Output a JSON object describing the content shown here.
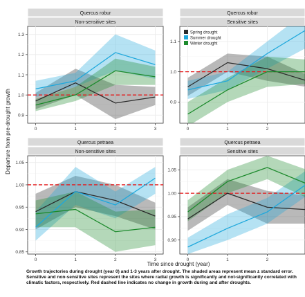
{
  "chart_data": {
    "type": "line",
    "ylabel": "Departure from pre-drought growth",
    "xlabel": "Time since drought (year)",
    "legend_placement": "top-left of upper-right panel",
    "grid": true,
    "legend": [
      {
        "name": "Spring drought",
        "color": "#2b2b2b"
      },
      {
        "name": "Summer drought",
        "color": "#1fa8dc"
      },
      {
        "name": "Winter drought",
        "color": "#1c8a2c"
      }
    ],
    "reference_line": {
      "y": 1.0,
      "style": "dashed",
      "color": "#e41a1c"
    },
    "panels": [
      {
        "species": "Quercus robur",
        "group": "Non-sensitive sites",
        "x": [
          0,
          1,
          2,
          3
        ],
        "xticks": [
          0,
          1,
          2,
          3
        ],
        "ylim": [
          0.86,
          1.34
        ],
        "yticks": [
          0.9,
          1.0,
          1.1,
          1.2,
          1.3
        ],
        "series": [
          {
            "name": "Spring drought",
            "values": [
              0.97,
              1.06,
              0.96,
              0.99
            ],
            "lower": [
              0.93,
              1.0,
              0.88,
              0.95
            ],
            "upper": [
              1.01,
              1.13,
              1.05,
              1.04
            ]
          },
          {
            "name": "Summer drought",
            "values": [
              1.03,
              1.07,
              1.21,
              1.15
            ],
            "lower": [
              0.99,
              1.04,
              1.12,
              1.08
            ],
            "upper": [
              1.07,
              1.11,
              1.3,
              1.22
            ]
          },
          {
            "name": "Winter drought",
            "values": [
              0.95,
              1.0,
              1.12,
              1.09
            ],
            "lower": [
              0.92,
              0.97,
              1.05,
              1.05
            ],
            "upper": [
              0.98,
              1.04,
              1.18,
              1.14
            ]
          }
        ]
      },
      {
        "species": "Quercus robur",
        "group": "Sensitive sites",
        "x": [
          0,
          1,
          2,
          3
        ],
        "xticks": [
          0,
          1,
          2
        ],
        "ylim": [
          0.83,
          1.15
        ],
        "yticks": [
          0.9,
          1.0,
          1.1
        ],
        "series": [
          {
            "name": "Spring drought",
            "values": [
              0.95,
              1.03,
              1.01,
              0.97
            ],
            "lower": [
              0.92,
              1.0,
              0.97,
              0.95
            ],
            "upper": [
              0.98,
              1.06,
              1.05,
              0.99
            ]
          },
          {
            "name": "Summer drought",
            "values": [
              0.94,
              0.97,
              1.06,
              1.14
            ],
            "lower": [
              0.91,
              0.94,
              1.01,
              1.08
            ],
            "upper": [
              0.97,
              1.0,
              1.1,
              1.2
            ]
          },
          {
            "name": "Winter drought",
            "values": [
              0.86,
              0.94,
              1.0,
              1.0
            ],
            "lower": [
              0.82,
              0.9,
              0.95,
              0.96
            ],
            "upper": [
              0.9,
              0.98,
              1.05,
              1.04
            ]
          }
        ]
      },
      {
        "species": "Quercus petraea",
        "group": "Non-sensitive sites",
        "x": [
          0,
          1,
          2,
          3
        ],
        "xticks": [
          0,
          1,
          2,
          3
        ],
        "ylim": [
          0.845,
          1.065
        ],
        "yticks": [
          0.85,
          0.9,
          0.95,
          1.0,
          1.05
        ],
        "series": [
          {
            "name": "Spring drought",
            "values": [
              0.94,
              0.985,
              0.965,
              0.93
            ],
            "lower": [
              0.9,
              0.95,
              0.93,
              0.9
            ],
            "upper": [
              0.98,
              1.02,
              1.0,
              0.96
            ]
          },
          {
            "name": "Summer drought",
            "values": [
              0.905,
              0.985,
              0.955,
              1.015
            ],
            "lower": [
              0.875,
              0.955,
              0.925,
              0.98
            ],
            "upper": [
              0.94,
              1.04,
              0.985,
              1.04
            ]
          },
          {
            "name": "Winter drought",
            "values": [
              0.935,
              0.945,
              0.895,
              0.905
            ],
            "lower": [
              0.905,
              0.905,
              0.85,
              0.865
            ],
            "upper": [
              0.965,
              0.985,
              0.94,
              0.945
            ]
          }
        ]
      },
      {
        "species": "Quercus petraea",
        "group": "Sensitive sites",
        "x": [
          0,
          1,
          2,
          3
        ],
        "xticks": [
          0,
          1,
          2
        ],
        "ylim": [
          0.87,
          1.08
        ],
        "yticks": [
          0.9,
          0.95,
          1.0,
          1.05
        ],
        "series": [
          {
            "name": "Spring drought",
            "values": [
              0.945,
              1.0,
              0.97,
              0.965
            ],
            "lower": [
              0.92,
              0.975,
              0.935,
              0.935
            ],
            "upper": [
              0.97,
              1.03,
              1.005,
              0.995
            ]
          },
          {
            "name": "Summer drought",
            "values": [
              0.885,
              0.925,
              0.96,
              1.02
            ],
            "lower": [
              0.87,
              0.9,
              0.935,
              0.995
            ],
            "upper": [
              0.905,
              0.955,
              0.99,
              1.05
            ]
          },
          {
            "name": "Winter drought",
            "values": [
              0.96,
              1.025,
              1.055,
              1.02
            ],
            "lower": [
              0.94,
              1.0,
              1.03,
              0.99
            ],
            "upper": [
              0.985,
              1.05,
              1.08,
              1.05
            ]
          }
        ]
      }
    ]
  },
  "caption": "Growth trajectories during drought (year 0) and 1-3 years after drought. The shaded areas represent mean ± standard error. Sensitive and non-sensitive sites represent the sites where radial growth is significantly and not-significantly correlated with climatic factors, respectively. Red dashed line indicates no change in growth during and after droughts."
}
